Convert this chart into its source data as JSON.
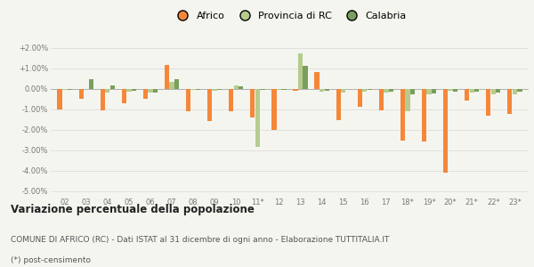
{
  "categories": [
    "02",
    "03",
    "04",
    "05",
    "06",
    "07",
    "08",
    "09",
    "10",
    "11*",
    "12",
    "13",
    "14",
    "15",
    "16",
    "17",
    "18*",
    "19*",
    "20*",
    "21*",
    "22*",
    "23*"
  ],
  "africo": [
    -1.0,
    -0.5,
    -1.05,
    -0.7,
    -0.5,
    1.15,
    -1.1,
    -1.6,
    -1.1,
    -1.4,
    -2.0,
    -0.1,
    0.8,
    -1.55,
    -0.9,
    -1.05,
    -2.55,
    -2.6,
    -4.1,
    -0.6,
    -1.3,
    -1.25
  ],
  "provincia": [
    -0.05,
    0.0,
    -0.2,
    -0.15,
    -0.2,
    0.35,
    -0.05,
    -0.1,
    0.15,
    -2.85,
    -0.05,
    1.7,
    -0.15,
    -0.2,
    -0.15,
    -0.2,
    -1.1,
    -0.3,
    -0.1,
    -0.2,
    -0.3,
    -0.3
  ],
  "calabria": [
    -0.05,
    0.45,
    0.15,
    -0.1,
    -0.2,
    0.45,
    -0.05,
    -0.05,
    0.1,
    -0.05,
    -0.05,
    1.1,
    -0.1,
    0.0,
    -0.05,
    -0.15,
    -0.3,
    -0.25,
    -0.15,
    -0.15,
    -0.2,
    -0.15
  ],
  "color_africo": "#f4873a",
  "color_provincia": "#b5cc8e",
  "color_calabria": "#7a9e5e",
  "title": "Variazione percentuale della popolazione",
  "subtitle": "COMUNE DI AFRICO (RC) - Dati ISTAT al 31 dicembre di ogni anno - Elaborazione TUTTITALIA.IT",
  "footnote": "(*) post-censimento",
  "ylim": [
    -5.25,
    2.5
  ],
  "yticks": [
    -5.0,
    -4.0,
    -3.0,
    -2.0,
    -1.0,
    0.0,
    1.0,
    2.0
  ],
  "bg_color": "#f5f5f0",
  "legend_labels": [
    "Africo",
    "Provincia di RC",
    "Calabria"
  ]
}
